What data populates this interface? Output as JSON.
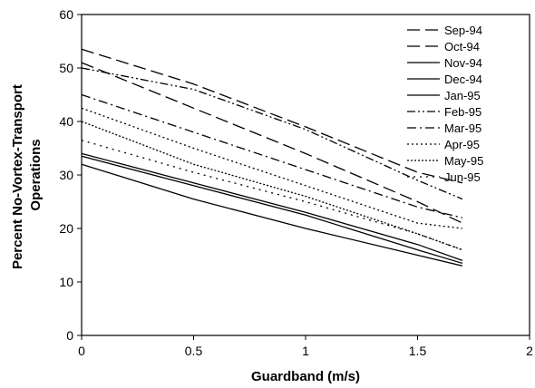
{
  "chart_data": {
    "type": "line",
    "title": "",
    "xlabel": "Guardband (m/s)",
    "ylabel_lines": [
      "Percent No-Vortex-Transport",
      "Operations"
    ],
    "xlim": [
      0,
      2
    ],
    "ylim": [
      0,
      60
    ],
    "xticks": [
      0,
      0.5,
      1,
      1.5,
      2
    ],
    "xtick_labels": [
      "0",
      "0.5",
      "1",
      "1.5",
      "2"
    ],
    "yticks": [
      0,
      10,
      20,
      30,
      40,
      50,
      60
    ],
    "ytick_labels": [
      "0",
      "10",
      "20",
      "30",
      "40",
      "50",
      "60"
    ],
    "grid": false,
    "legend_position": "top-right",
    "x": [
      0,
      0.5,
      1,
      1.5,
      1.7
    ],
    "series": [
      {
        "name": "Sep-94",
        "dash": "long-dash",
        "color": "#000000",
        "values": [
          53.5,
          47,
          39,
          30.5,
          28.5
        ]
      },
      {
        "name": "Oct-94",
        "dash": "long-dash",
        "color": "#000000",
        "values": [
          51,
          42.5,
          34,
          25,
          21
        ]
      },
      {
        "name": "Nov-94",
        "dash": "solid",
        "color": "#000000",
        "values": [
          34,
          28.5,
          23,
          17,
          14
        ]
      },
      {
        "name": "Dec-94",
        "dash": "solid",
        "color": "#000000",
        "values": [
          33.5,
          28,
          22.5,
          16,
          13.5
        ]
      },
      {
        "name": "Jan-95",
        "dash": "solid",
        "color": "#000000",
        "values": [
          32,
          25.5,
          20,
          15,
          13
        ]
      },
      {
        "name": "Feb-95",
        "dash": "dash-dot-dot",
        "color": "#000000",
        "values": [
          50,
          46,
          38.5,
          29,
          25.5
        ]
      },
      {
        "name": "Mar-95",
        "dash": "dash-dot",
        "color": "#000000",
        "values": [
          45,
          38,
          31,
          24,
          22
        ]
      },
      {
        "name": "Apr-95",
        "dash": "dotted",
        "color": "#000000",
        "values": [
          42.5,
          35,
          28,
          21,
          20
        ]
      },
      {
        "name": "May-95",
        "dash": "short-dot",
        "color": "#000000",
        "values": [
          40,
          32,
          26,
          19,
          16
        ]
      },
      {
        "name": "Jun-95",
        "dash": "sparse-dot",
        "color": "#000000",
        "values": [
          36.5,
          30.5,
          25,
          19,
          16
        ]
      }
    ]
  }
}
